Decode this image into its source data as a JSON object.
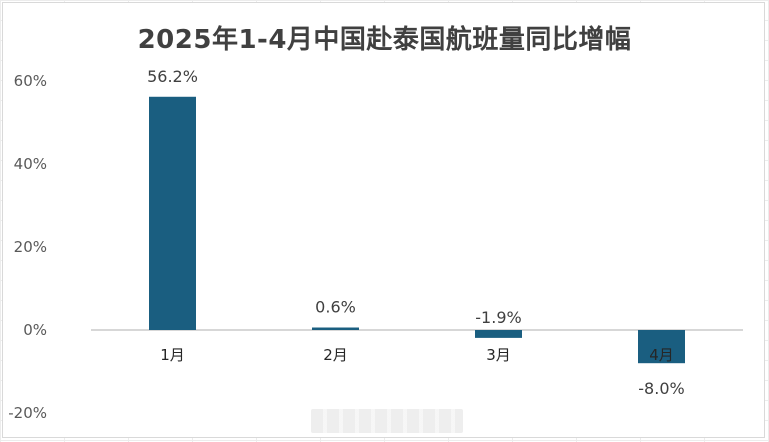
{
  "chart_data": {
    "type": "bar",
    "title": "2025年1-4月中国赴泰国航班量同比增幅",
    "categories": [
      "1月",
      "2月",
      "3月",
      "4月"
    ],
    "values": [
      56.2,
      0.6,
      -1.9,
      -8.0
    ],
    "data_labels": [
      "56.2%",
      "0.6%",
      "-1.9%",
      "-8.0%"
    ],
    "y_ticks": [
      60,
      40,
      20,
      0,
      -20
    ],
    "y_tick_labels": [
      "60%",
      "40%",
      "20%",
      "0%",
      "-20%"
    ],
    "ylim": [
      -20,
      60
    ],
    "grid": false,
    "bar_color": "#1a5e80",
    "axis_color": "#bfbfbf"
  }
}
